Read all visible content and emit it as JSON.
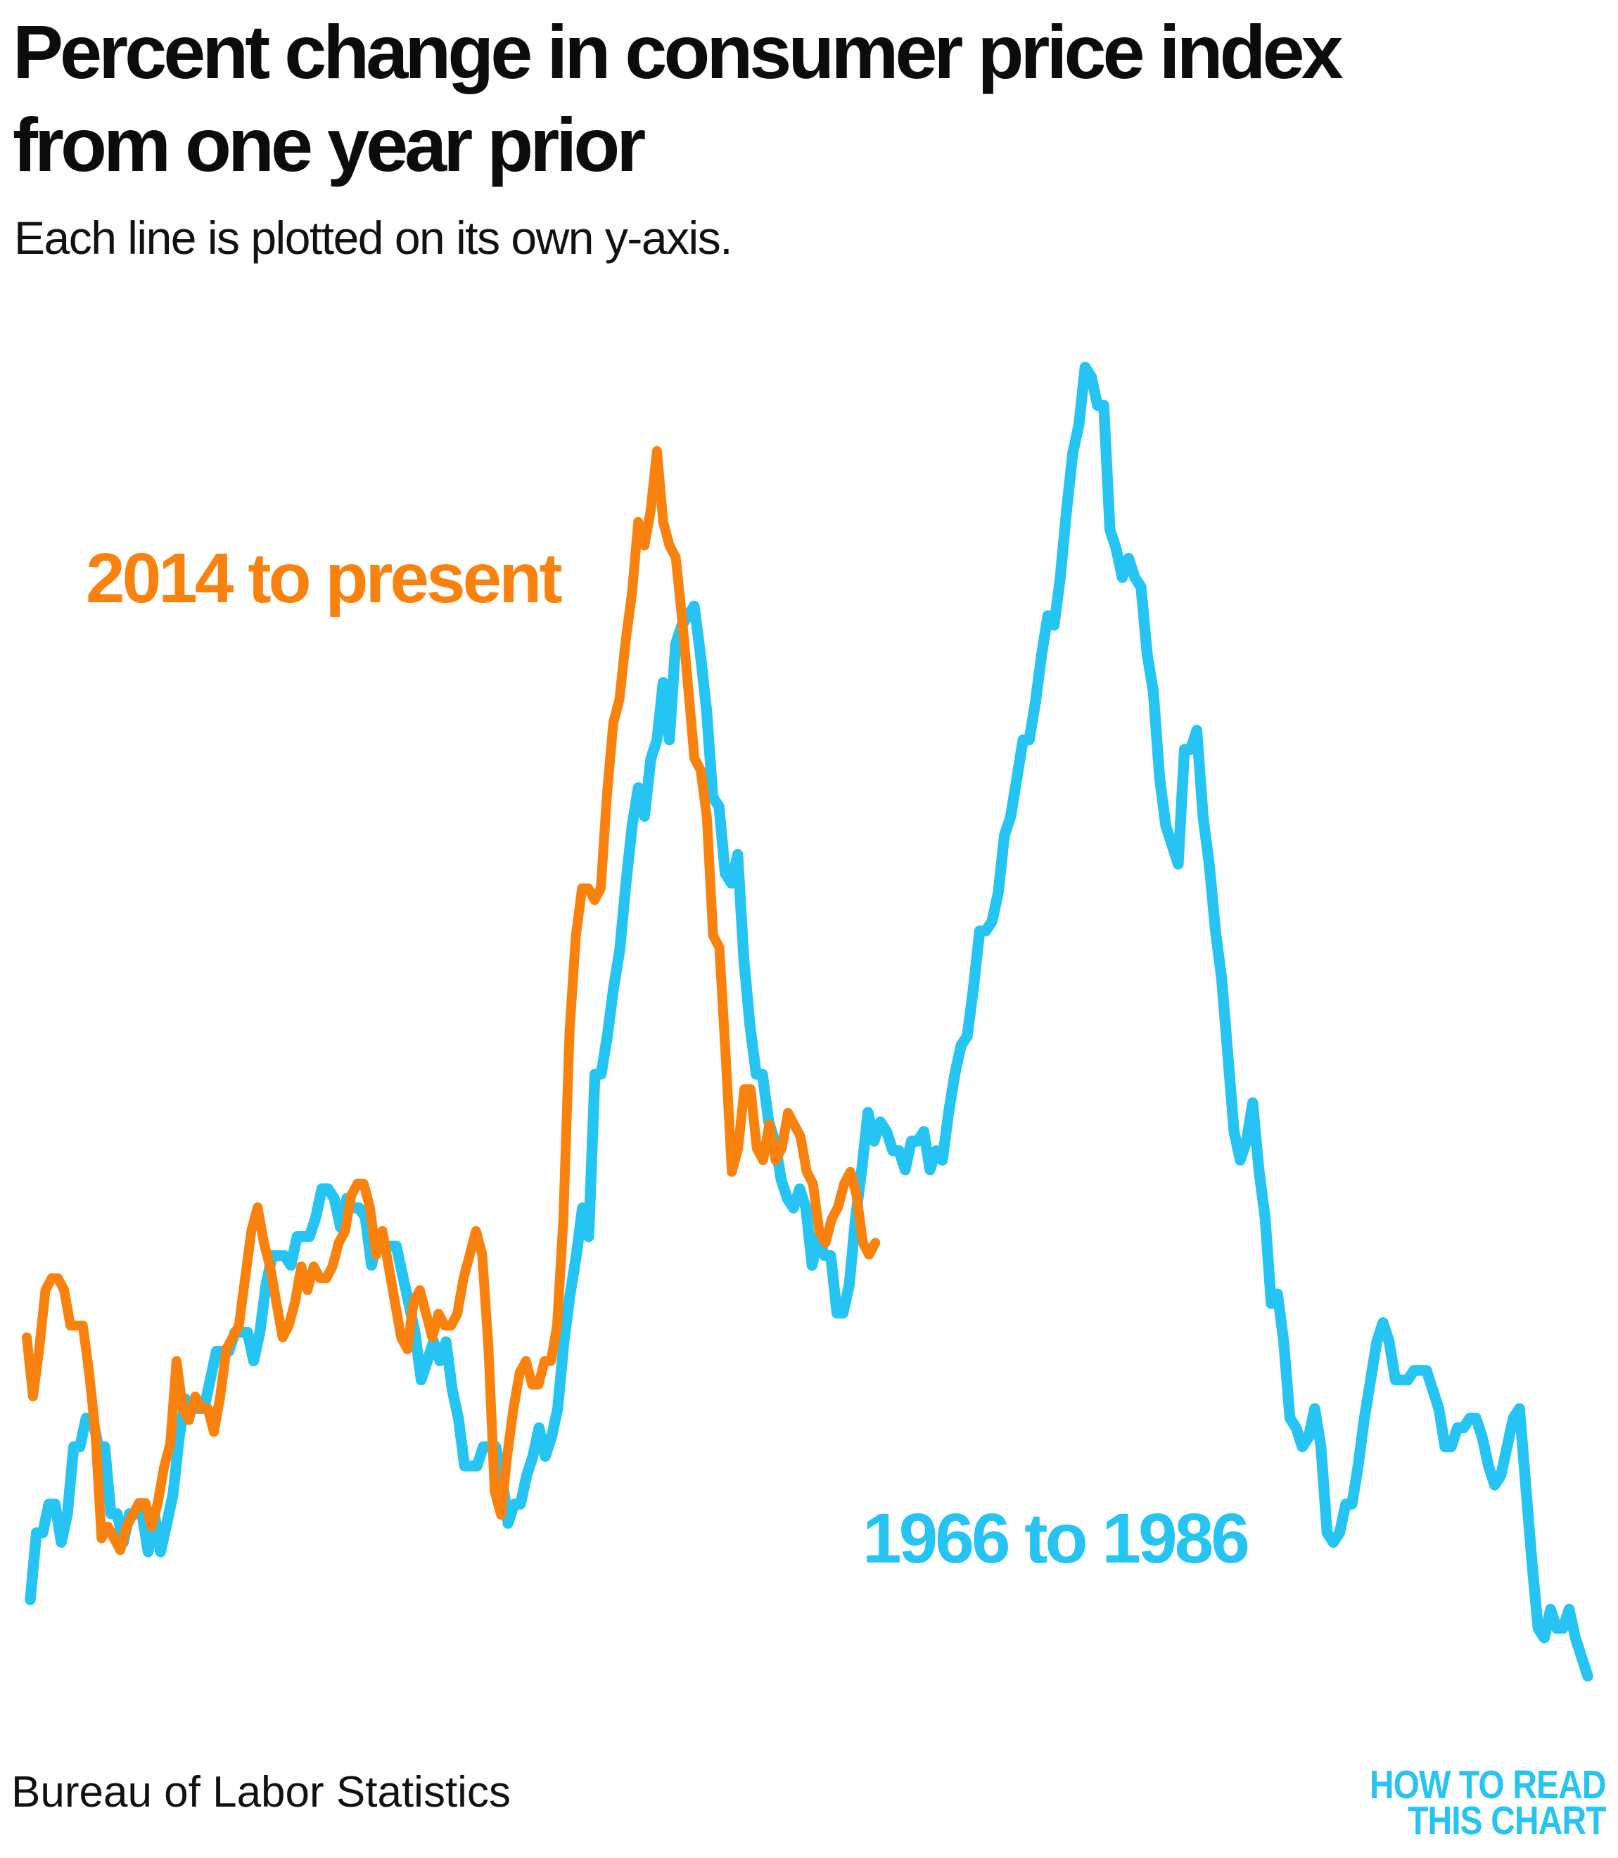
{
  "header": {
    "title_line1": "Percent change in consumer price index",
    "title_line2": "from one year prior",
    "subtitle": "Each line is plotted on its own y-axis."
  },
  "footer": {
    "attribution": "Bureau of Labor Statistics",
    "logo_line1": "HOW TO READ",
    "logo_line2": "THIS CHART"
  },
  "colors": {
    "orange": "#f8820d",
    "cyan": "#25c4f3",
    "text": "#0c0c0c",
    "background": "#ffffff"
  },
  "chart_data": {
    "type": "line",
    "title": "Percent change in consumer price index from one year prior",
    "subtitle": "Each line is plotted on its own y-axis.",
    "source": "Bureau of Labor Statistics",
    "xlabel": "",
    "ylabel": "Percent change from one year prior",
    "y_unit": "percent",
    "grid": false,
    "axes_hidden": true,
    "legend_position": "inline-labels",
    "series": [
      {
        "name": "1966 to 1986",
        "color": "#25c4f3",
        "start": "1966-01",
        "end": "1986-12",
        "frequency": "monthly",
        "ylim": [
          1.1,
          14.8
        ],
        "peak": {
          "date": "1980-03",
          "value": 14.8
        },
        "values": [
          1.9,
          2.6,
          2.6,
          2.9,
          2.9,
          2.5,
          2.8,
          3.5,
          3.5,
          3.8,
          3.8,
          3.5,
          3.5,
          2.8,
          2.8,
          2.5,
          2.8,
          2.8,
          2.8,
          2.4,
          2.8,
          2.4,
          2.7,
          3.0,
          3.6,
          4.0,
          3.9,
          3.9,
          3.9,
          4.2,
          4.5,
          4.5,
          4.5,
          4.7,
          4.7,
          4.7,
          4.4,
          4.7,
          5.2,
          5.5,
          5.5,
          5.5,
          5.4,
          5.7,
          5.7,
          5.7,
          5.9,
          6.2,
          6.2,
          6.1,
          5.8,
          6.1,
          6.0,
          6.0,
          5.9,
          5.4,
          5.7,
          5.6,
          5.6,
          5.6,
          5.3,
          5.0,
          4.7,
          4.2,
          4.4,
          4.6,
          4.4,
          4.6,
          4.1,
          3.8,
          3.3,
          3.3,
          3.3,
          3.5,
          3.5,
          3.5,
          3.2,
          2.7,
          2.9,
          2.9,
          3.2,
          3.4,
          3.7,
          3.4,
          3.6,
          3.9,
          4.6,
          5.1,
          5.5,
          6.0,
          5.7,
          7.4,
          7.4,
          7.8,
          8.3,
          8.7,
          9.4,
          10.0,
          10.4,
          10.1,
          10.7,
          10.9,
          11.5,
          10.9,
          11.9,
          12.1,
          12.2,
          12.3,
          11.8,
          11.2,
          10.3,
          10.2,
          9.5,
          9.4,
          9.7,
          8.6,
          7.9,
          7.4,
          7.4,
          6.9,
          6.7,
          6.3,
          6.1,
          6.0,
          6.2,
          6.0,
          5.4,
          5.7,
          5.5,
          5.5,
          4.9,
          4.9,
          5.2,
          5.9,
          6.4,
          7.0,
          6.7,
          6.9,
          6.8,
          6.6,
          6.6,
          6.4,
          6.7,
          6.7,
          6.8,
          6.4,
          6.6,
          6.5,
          7.0,
          7.4,
          7.7,
          7.8,
          8.3,
          8.9,
          8.9,
          9.0,
          9.3,
          9.9,
          10.1,
          10.5,
          10.9,
          10.9,
          11.3,
          11.8,
          12.2,
          12.1,
          12.6,
          13.3,
          13.9,
          14.2,
          14.8,
          14.7,
          14.4,
          14.4,
          13.1,
          12.9,
          12.6,
          12.8,
          12.6,
          12.5,
          11.8,
          11.4,
          10.5,
          10.0,
          9.8,
          9.6,
          10.8,
          10.8,
          11.0,
          10.1,
          9.6,
          8.9,
          8.4,
          7.6,
          6.8,
          6.5,
          6.7,
          7.1,
          6.4,
          5.9,
          5.0,
          5.1,
          4.6,
          3.8,
          3.7,
          3.5,
          3.6,
          3.9,
          3.5,
          2.6,
          2.5,
          2.6,
          2.9,
          2.9,
          3.3,
          3.8,
          4.2,
          4.6,
          4.8,
          4.6,
          4.2,
          4.2,
          4.2,
          4.3,
          4.3,
          4.3,
          4.1,
          3.9,
          3.5,
          3.5,
          3.7,
          3.7,
          3.8,
          3.8,
          3.6,
          3.3,
          3.1,
          3.2,
          3.5,
          3.8,
          3.9,
          3.1,
          2.3,
          1.6,
          1.5,
          1.8,
          1.6,
          1.6,
          1.8,
          1.5,
          1.3,
          1.1
        ]
      },
      {
        "name": "2014 to present",
        "color": "#f8820d",
        "start": "2014-01",
        "end": "2025-05",
        "frequency": "monthly",
        "ylim": [
          -0.2,
          9.1
        ],
        "peak": {
          "date": "2022-06",
          "value": 9.1
        },
        "values": [
          1.6,
          1.1,
          1.5,
          2.0,
          2.1,
          2.1,
          2.0,
          1.7,
          1.7,
          1.7,
          1.3,
          0.8,
          -0.1,
          0.0,
          -0.1,
          -0.2,
          0.0,
          0.1,
          0.2,
          0.2,
          0.0,
          0.2,
          0.5,
          0.7,
          1.4,
          1.0,
          0.9,
          1.1,
          1.0,
          1.0,
          0.8,
          1.1,
          1.5,
          1.6,
          1.7,
          2.1,
          2.5,
          2.7,
          2.4,
          2.2,
          1.9,
          1.6,
          1.7,
          1.9,
          2.2,
          2.0,
          2.2,
          2.1,
          2.1,
          2.2,
          2.4,
          2.5,
          2.8,
          2.9,
          2.9,
          2.7,
          2.3,
          2.5,
          2.2,
          1.9,
          1.6,
          1.5,
          1.9,
          2.0,
          1.8,
          1.6,
          1.8,
          1.7,
          1.7,
          1.8,
          2.1,
          2.3,
          2.5,
          2.3,
          1.5,
          0.3,
          0.1,
          0.6,
          1.0,
          1.3,
          1.4,
          1.2,
          1.2,
          1.4,
          1.4,
          1.7,
          2.6,
          4.2,
          5.0,
          5.4,
          5.4,
          5.3,
          5.4,
          6.2,
          6.8,
          7.0,
          7.5,
          7.9,
          8.5,
          8.3,
          8.6,
          9.1,
          8.5,
          8.3,
          8.2,
          7.7,
          7.1,
          6.5,
          6.4,
          6.0,
          5.0,
          4.9,
          4.0,
          3.0,
          3.2,
          3.7,
          3.7,
          3.2,
          3.1,
          3.4,
          3.1,
          3.2,
          3.5,
          3.4,
          3.3,
          3.0,
          2.9,
          2.5,
          2.4,
          2.6,
          2.7,
          2.9,
          3.0,
          2.8,
          2.4,
          2.3,
          2.4
        ]
      }
    ]
  }
}
